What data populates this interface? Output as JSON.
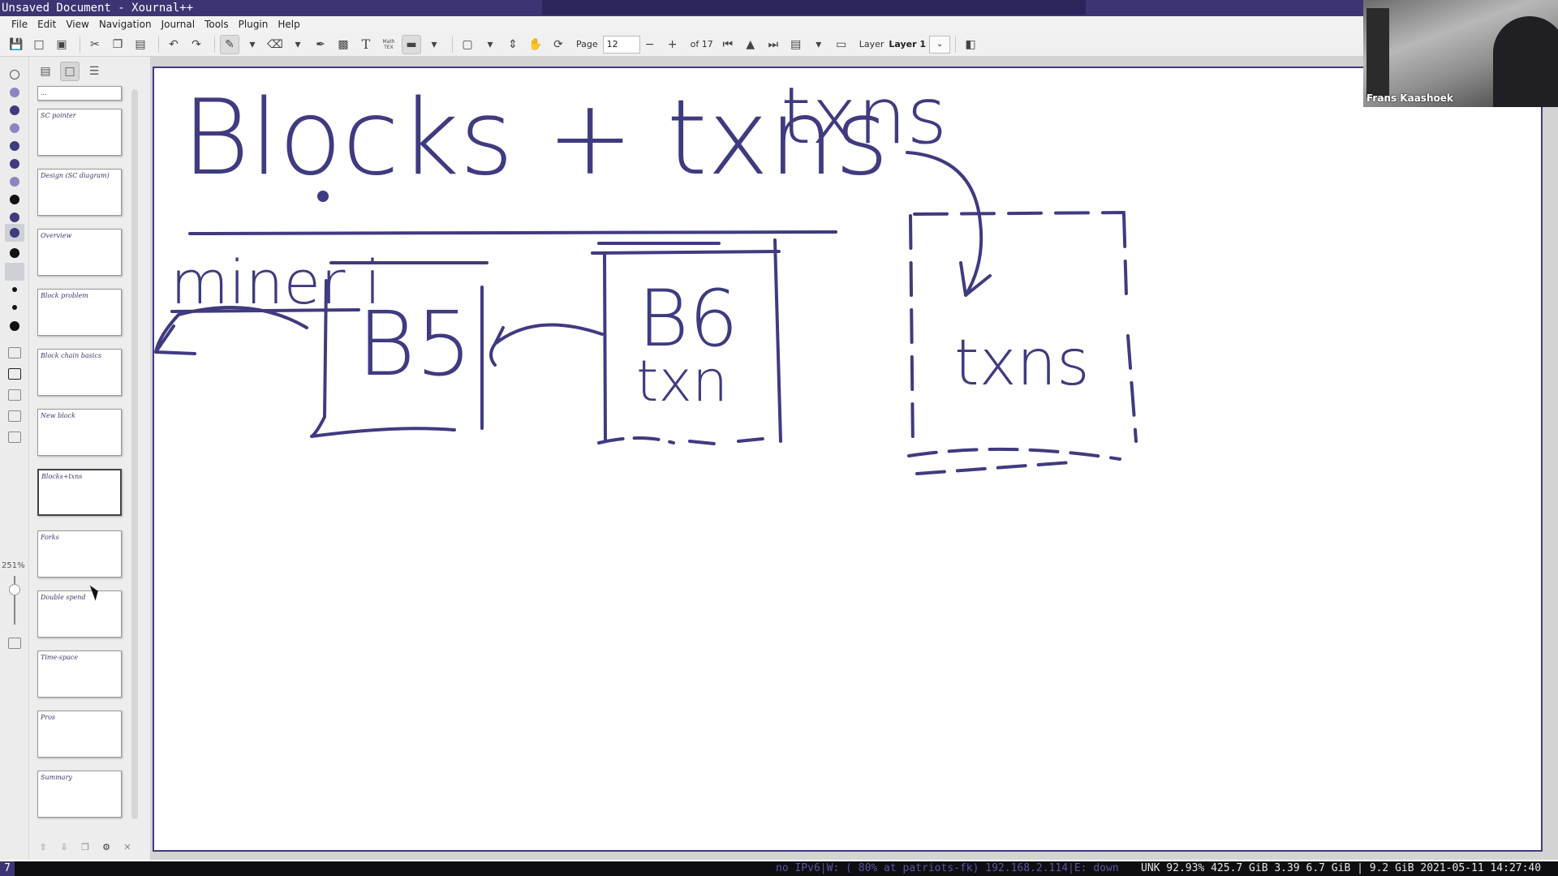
{
  "window": {
    "title": "Unsaved Document - Xournal++"
  },
  "menu": [
    "File",
    "Edit",
    "View",
    "Navigation",
    "Journal",
    "Tools",
    "Plugin",
    "Help"
  ],
  "toolbar": {
    "page_label": "Page",
    "page_value": "12",
    "page_total": "of 17",
    "layer_label": "Layer",
    "layer_value": "Layer 1",
    "text_tool": "T",
    "math_tool": "Math TEX"
  },
  "tools": {
    "zoom_level": "251%"
  },
  "sidebar": {
    "pages": [
      {
        "scribble": "..."
      },
      {
        "scribble": "SC pointer"
      },
      {
        "scribble": "Design (SC diagram)"
      },
      {
        "scribble": "Overview"
      },
      {
        "scribble": "Block problem"
      },
      {
        "scribble": "Block chain basics"
      },
      {
        "scribble": "New block"
      },
      {
        "scribble": "Blocks+txns"
      },
      {
        "scribble": "Forks"
      },
      {
        "scribble": "Double spend"
      },
      {
        "scribble": "Time-space"
      },
      {
        "scribble": "Pros"
      },
      {
        "scribble": "Summary"
      }
    ],
    "selected_index": 7
  },
  "canvas": {
    "heading": "Blocks + txns",
    "miner": "miner i",
    "block5": "B5",
    "block6": "B6",
    "block6_sub": "txn",
    "pool_label": "txns",
    "pool_box_label": "txns"
  },
  "video": {
    "participant": "Frans Kaashoek"
  },
  "statusbar": {
    "workspace": "7",
    "network": "no IPv6|W: ( 80% at patriots-fk) 192.168.2.114|E: down",
    "system": "UNK 92.93% 425.7 GiB 3.39 6.7 GiB | 9.2 GiB 2021-05-11 14:27:40"
  },
  "colors": {
    "ink": "#3f3b80",
    "titlebar": "#3b3573"
  },
  "icons": {
    "save": "save-icon",
    "new": "new-page-icon",
    "cut": "cut-icon",
    "copy": "copy-icon",
    "paste": "paste-icon",
    "undo": "undo-icon",
    "redo": "redo-icon",
    "pen": "pen-icon",
    "eraser": "eraser-icon",
    "highlighter": "highlighter-icon",
    "image": "image-icon",
    "select": "select-rect-icon",
    "hand": "hand-icon",
    "rotate": "rotate-icon"
  }
}
